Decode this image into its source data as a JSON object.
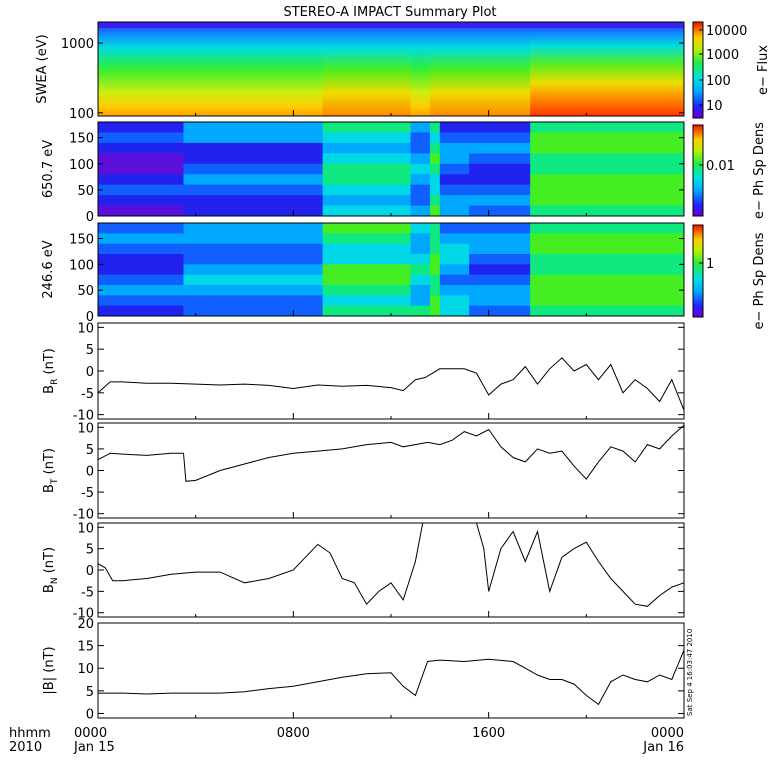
{
  "title": "STEREO-A IMPACT Summary Plot",
  "time_axis": {
    "corner_top": "hhmm",
    "corner_bottom": "2010",
    "ticks": [
      {
        "t": 0,
        "top": "0000",
        "bottom": "Jan 15"
      },
      {
        "t": 8,
        "top": "0800",
        "bottom": ""
      },
      {
        "t": 16,
        "top": "1600",
        "bottom": ""
      },
      {
        "t": 24,
        "top": "0000",
        "bottom": "Jan 16"
      }
    ],
    "range_hours": [
      0,
      24
    ]
  },
  "timestamp": "Sat Sep  4 16:03:47 2010",
  "colorbars": [
    {
      "panel": "swea",
      "label": "e− Flux",
      "ticks": [
        "10000",
        "1000",
        "100",
        "10"
      ]
    },
    {
      "panel": "e650",
      "label": "e− Ph Sp Dens",
      "ticks": [
        "0.01"
      ]
    },
    {
      "panel": "e246",
      "label": "e− Ph Sp Dens",
      "ticks": [
        "1"
      ]
    }
  ],
  "chart_data": [
    {
      "type": "heatmap",
      "id": "swea",
      "ylabel": "SWEA (eV)",
      "yticks": [
        "1000",
        "100"
      ],
      "ylim": [
        90,
        2000
      ],
      "scale": "log",
      "x_segments": [
        [
          0,
          3.3
        ],
        [
          3.3,
          9.2
        ],
        [
          9.2,
          12.8
        ],
        [
          12.8,
          13.6
        ],
        [
          13.6,
          15.2
        ],
        [
          15.2,
          17.7
        ],
        [
          17.7,
          18.7
        ],
        [
          18.7,
          21.5
        ],
        [
          21.5,
          24
        ]
      ],
      "level": [
        0.35,
        0.3,
        0.55,
        0.35,
        0.5,
        0.55,
        0.75,
        0.8,
        0.85
      ]
    },
    {
      "type": "heatmap",
      "id": "e650",
      "ylabel": "650.7 eV",
      "yticks": [
        "150",
        "100",
        "50",
        "0"
      ],
      "ylim": [
        0,
        180
      ],
      "x_segments": [
        [
          0,
          3.5
        ],
        [
          3.5,
          9.2
        ],
        [
          9.2,
          12.8
        ],
        [
          12.8,
          13.6
        ],
        [
          13.6,
          14.0
        ],
        [
          14.0,
          15.2
        ],
        [
          15.2,
          17.7
        ],
        [
          17.7,
          24
        ]
      ],
      "level": [
        0.1,
        0.2,
        0.45,
        0.3,
        0.55,
        0.25,
        0.2,
        0.6
      ]
    },
    {
      "type": "heatmap",
      "id": "e246",
      "ylabel": "246.6 eV",
      "yticks": [
        "150",
        "100",
        "50",
        "0"
      ],
      "ylim": [
        0,
        180
      ],
      "x_segments": [
        [
          0,
          3.5
        ],
        [
          3.5,
          9.2
        ],
        [
          9.2,
          12.8
        ],
        [
          12.8,
          13.6
        ],
        [
          13.6,
          14.0
        ],
        [
          14.0,
          15.2
        ],
        [
          15.2,
          17.7
        ],
        [
          17.7,
          24
        ]
      ],
      "level": [
        0.2,
        0.3,
        0.55,
        0.45,
        0.6,
        0.35,
        0.25,
        0.6
      ]
    },
    {
      "type": "line",
      "id": "br",
      "ylabel": "B",
      "ysub": "R",
      "yunit": "(nT)",
      "ylim": [
        -11,
        11
      ],
      "yticks": [
        10,
        5,
        0,
        -5,
        -10
      ],
      "x": [
        0,
        0.5,
        1,
        2,
        3,
        4,
        5,
        6,
        7,
        8,
        9,
        10,
        11,
        12,
        12.5,
        13,
        13.4,
        14,
        15,
        15.5,
        16,
        16.5,
        17,
        17.5,
        18,
        18.5,
        19,
        19.5,
        20,
        20.5,
        21,
        21.5,
        22,
        22.5,
        23,
        23.5,
        24
      ],
      "y": [
        -5,
        -2.5,
        -2.5,
        -2.8,
        -2.8,
        -3.0,
        -3.2,
        -3.0,
        -3.3,
        -4.0,
        -3.2,
        -3.5,
        -3.3,
        -3.8,
        -4.5,
        -2.0,
        -1.5,
        0.5,
        0.5,
        -0.5,
        -5.5,
        -3.0,
        -2.0,
        1.0,
        -3.0,
        0.5,
        3.0,
        0.0,
        1.5,
        -2.0,
        1.5,
        -5.0,
        -2.0,
        -4.0,
        -7.0,
        -2.0,
        -9.0
      ]
    },
    {
      "type": "line",
      "id": "bt",
      "ylabel": "B",
      "ysub": "T",
      "yunit": "(nT)",
      "ylim": [
        -11,
        11
      ],
      "yticks": [
        10,
        5,
        0,
        -5,
        -10
      ],
      "x": [
        0,
        0.5,
        1,
        2,
        3,
        3.5,
        3.6,
        4,
        5,
        6,
        7,
        8,
        9,
        10,
        11,
        12,
        12.5,
        13,
        13.5,
        14,
        14.5,
        15,
        15.5,
        16,
        16.5,
        17,
        17.5,
        18,
        18.5,
        19,
        19.5,
        20,
        20.5,
        21,
        21.5,
        22,
        22.5,
        23,
        23.5,
        24
      ],
      "y": [
        2.5,
        4.0,
        3.8,
        3.5,
        4.0,
        4.0,
        -2.5,
        -2.3,
        0.0,
        1.5,
        3.0,
        4.0,
        4.5,
        5.0,
        6.0,
        6.5,
        5.5,
        6.0,
        6.5,
        6.0,
        7.0,
        9.0,
        8.0,
        9.5,
        5.5,
        3.0,
        2.0,
        5.0,
        4.0,
        4.5,
        1.0,
        -2.0,
        2.0,
        5.5,
        4.5,
        2.0,
        6.0,
        5.0,
        8.0,
        10.5
      ]
    },
    {
      "type": "line",
      "id": "bn",
      "ylabel": "B",
      "ysub": "N",
      "yunit": "(nT)",
      "ylim": [
        -11,
        11
      ],
      "yticks": [
        10,
        5,
        0,
        -5,
        -10
      ],
      "x": [
        0,
        0.3,
        0.6,
        1,
        2,
        3,
        4,
        5,
        6,
        7,
        8,
        8.5,
        9,
        9.5,
        10,
        10.5,
        11,
        11.5,
        12,
        12.5,
        13,
        13.3,
        13.6,
        14,
        14.5,
        15,
        15.5,
        15.8,
        16,
        16.5,
        17,
        17.5,
        18,
        18.5,
        19,
        19.5,
        20,
        20.5,
        21,
        21.5,
        22,
        22.5,
        23,
        23.5,
        24
      ],
      "y": [
        1.5,
        0.5,
        -2.5,
        -2.5,
        -2.0,
        -1.0,
        -0.5,
        -0.5,
        -3.0,
        -2.0,
        0.0,
        3.0,
        6.0,
        4.0,
        -2.0,
        -3.0,
        -8.0,
        -5.0,
        -3.0,
        -7.0,
        2.0,
        11.0,
        11.0,
        11.0,
        11.0,
        11.0,
        11.0,
        5.0,
        -5.0,
        5.0,
        9.0,
        2.0,
        9.0,
        -5.0,
        3.0,
        5.0,
        6.5,
        2.0,
        -2.0,
        -5.0,
        -8.0,
        -8.5,
        -6.0,
        -4.0,
        -3.0
      ]
    },
    {
      "type": "line",
      "id": "bmag",
      "ylabel": "|B|",
      "ysub": "",
      "yunit": "(nT)",
      "ylim": [
        -1,
        20
      ],
      "yticks": [
        20,
        15,
        10,
        5,
        0
      ],
      "x": [
        0,
        1,
        2,
        3,
        4,
        5,
        6,
        7,
        8,
        9,
        10,
        11,
        12,
        12.5,
        13,
        13.5,
        14,
        15,
        16,
        17,
        17.5,
        18,
        18.5,
        19,
        19.5,
        20,
        20.5,
        21,
        21.5,
        22,
        22.5,
        23,
        23.5,
        24
      ],
      "y": [
        4.5,
        4.5,
        4.3,
        4.5,
        4.5,
        4.5,
        4.8,
        5.5,
        6.0,
        7.0,
        8.0,
        8.8,
        9.0,
        6.0,
        4.0,
        11.5,
        11.8,
        11.5,
        12.0,
        11.5,
        10.0,
        8.5,
        7.5,
        7.5,
        6.5,
        4.0,
        2.0,
        7.0,
        8.5,
        7.5,
        7.0,
        8.5,
        7.5,
        14.0
      ]
    }
  ]
}
